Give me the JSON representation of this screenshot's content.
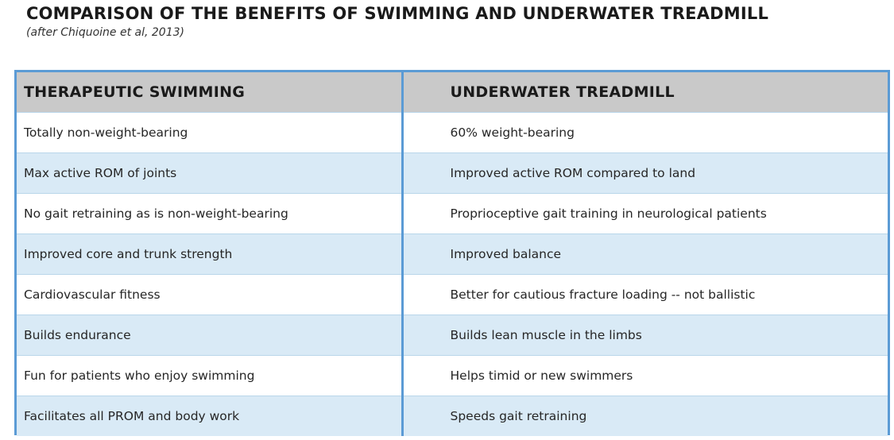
{
  "title": "COMPARISON OF THE BENEFITS OF SWIMMING AND UNDERWATER TREADMILL",
  "subtitle": "(after Chiquoine et al, 2013)",
  "table": {
    "headers": [
      "THERAPEUTIC SWIMMING",
      "UNDERWATER TREADMILL"
    ],
    "rows": [
      [
        "Totally non-weight-bearing",
        "60% weight-bearing"
      ],
      [
        "Max active ROM of joints",
        "Improved active ROM compared to land"
      ],
      [
        "No gait retraining as is non-weight-bearing",
        "Proprioceptive gait training in neurological patients"
      ],
      [
        "Improved core and trunk strength",
        "Improved balance"
      ],
      [
        "Cardiovascular fitness",
        "Better for cautious fracture loading -- not ballistic"
      ],
      [
        "Builds endurance",
        "Builds lean muscle in the limbs"
      ],
      [
        "Fun for patients who enjoy swimming",
        "Helps timid or new swimmers"
      ],
      [
        "Facilitates all PROM and body work",
        "Speeds gait retraining"
      ]
    ]
  },
  "colors": {
    "border": "#5b9bd5",
    "header_bg": "#c9c9c9",
    "stripe_bg": "#d9eaf6",
    "row_bg": "#ffffff"
  }
}
